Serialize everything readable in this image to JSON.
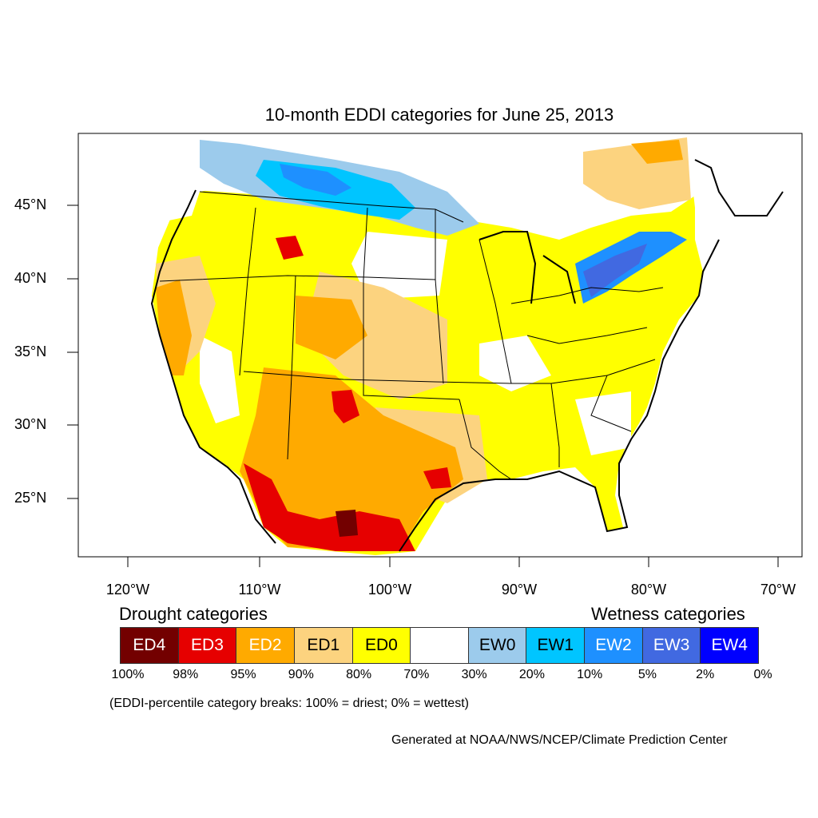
{
  "map": {
    "title": "10-month EDDI categories for June 25, 2013",
    "lat_labels": [
      "45°N",
      "40°N",
      "35°N",
      "30°N",
      "25°N"
    ],
    "lon_labels": [
      "120°W",
      "110°W",
      "100°W",
      "90°W",
      "80°W",
      "70°W"
    ]
  },
  "legend": {
    "drought_heading": "Drought categories",
    "wetness_heading": "Wetness categories",
    "categories": [
      {
        "label": "ED4",
        "color": "#730000",
        "text_color": "#ffffff"
      },
      {
        "label": "ED3",
        "color": "#e60000",
        "text_color": "#ffffff"
      },
      {
        "label": "ED2",
        "color": "#ffaa00",
        "text_color": "#ffffff"
      },
      {
        "label": "ED1",
        "color": "#fcd37f",
        "text_color": "#000000"
      },
      {
        "label": "ED0",
        "color": "#ffff00",
        "text_color": "#000000"
      },
      {
        "label": "",
        "color": "#ffffff",
        "text_color": "#000000"
      },
      {
        "label": "EW0",
        "color": "#9ccbec",
        "text_color": "#000000"
      },
      {
        "label": "EW1",
        "color": "#00c5ff",
        "text_color": "#000000"
      },
      {
        "label": "EW2",
        "color": "#1e90ff",
        "text_color": "#ffffff"
      },
      {
        "label": "EW3",
        "color": "#4169e1",
        "text_color": "#ffffff"
      },
      {
        "label": "EW4",
        "color": "#0000ff",
        "text_color": "#ffffff"
      }
    ],
    "breaks": [
      "100%",
      "98%",
      "95%",
      "90%",
      "80%",
      "70%",
      "30%",
      "20%",
      "10%",
      "5%",
      "2%",
      "0%"
    ],
    "note": "(EDDI-percentile category breaks: 100% = driest; 0% = wettest)"
  },
  "credit": "Generated at NOAA/NWS/NCEP/Climate Prediction Center"
}
